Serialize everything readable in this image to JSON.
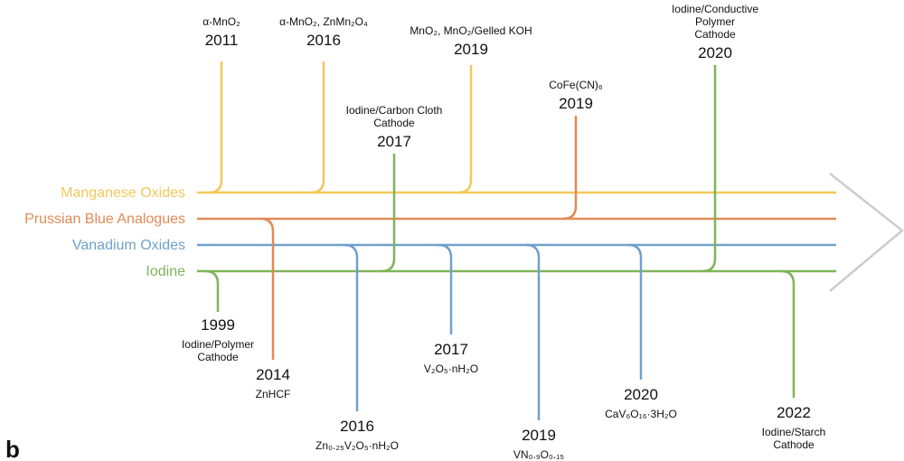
{
  "panel_label": "b",
  "colors": {
    "manganese": "#f3c85a",
    "prussian": "#e08a55",
    "vanadium": "#6fa1cd",
    "iodine": "#7fb45a",
    "arrow": "#cccccc"
  },
  "lanes": [
    {
      "key": "manganese",
      "label": "Manganese Oxides",
      "color": "#f3c85a"
    },
    {
      "key": "prussian",
      "label": "Prussian Blue Analogues",
      "color": "#e08a55"
    },
    {
      "key": "vanadium",
      "label": "Vanadium Oxides",
      "color": "#6fa1cd"
    },
    {
      "key": "iodine",
      "label": "Iodine",
      "color": "#7fb45a"
    }
  ],
  "events": [
    {
      "id": "mn-2011",
      "lane": "manganese",
      "year": "2011",
      "desc": [
        "α-MnO₂"
      ]
    },
    {
      "id": "mn-2016",
      "lane": "manganese",
      "year": "2016",
      "desc": [
        "α-MnO₂, ZnMn₂O₄"
      ]
    },
    {
      "id": "mn-2019",
      "lane": "manganese",
      "year": "2019",
      "desc": [
        "MnO₂, MnO₂/Gelled KOH"
      ]
    },
    {
      "id": "pba-2019",
      "lane": "prussian",
      "year": "2019",
      "desc": [
        "CoFe(CN)₆"
      ]
    },
    {
      "id": "pba-2014",
      "lane": "prussian",
      "year": "2014",
      "desc": [
        "ZnHCF"
      ]
    },
    {
      "id": "v-2016",
      "lane": "vanadium",
      "year": "2016",
      "desc": [
        "Zn₀.₂₅V₂O₅·nH₂O"
      ]
    },
    {
      "id": "v-2017",
      "lane": "vanadium",
      "year": "2017",
      "desc": [
        "V₂O₅·nH₂O"
      ]
    },
    {
      "id": "v-2019",
      "lane": "vanadium",
      "year": "2019",
      "desc": [
        "VN₀.₉O₀.₁₅"
      ]
    },
    {
      "id": "v-2020",
      "lane": "vanadium",
      "year": "2020",
      "desc": [
        "CaV₆O₁₆·3H₂O"
      ]
    },
    {
      "id": "i-1999",
      "lane": "iodine",
      "year": "1999",
      "desc": [
        "Iodine/Polymer",
        "Cathode"
      ]
    },
    {
      "id": "i-2017",
      "lane": "iodine",
      "year": "2017",
      "desc": [
        "Iodine/Carbon Cloth",
        "Cathode"
      ]
    },
    {
      "id": "i-2020",
      "lane": "iodine",
      "year": "2020",
      "desc": [
        "Iodine/Conductive",
        "Polymer",
        "Cathode"
      ]
    },
    {
      "id": "i-2022",
      "lane": "iodine",
      "year": "2022",
      "desc": [
        "Iodine/Starch",
        "Cathode"
      ]
    }
  ]
}
